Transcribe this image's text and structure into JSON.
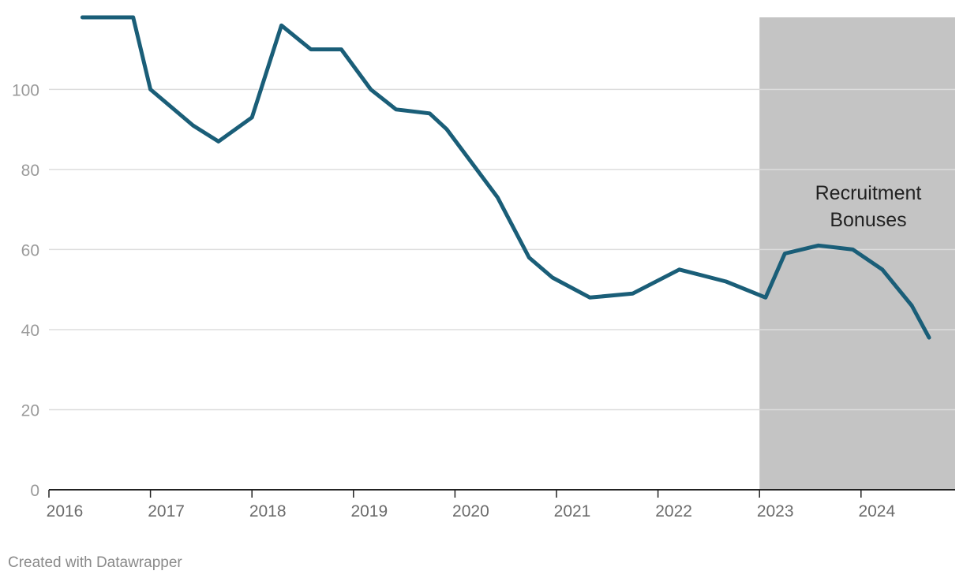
{
  "chart_data": {
    "type": "line",
    "title": "",
    "xlabel": "",
    "ylabel": "",
    "xlim": [
      2016,
      2024.8
    ],
    "ylim": [
      0,
      118
    ],
    "y_ticks": [
      0,
      20,
      40,
      60,
      80,
      100
    ],
    "x_ticks": [
      2016,
      2017,
      2018,
      2019,
      2020,
      2021,
      2022,
      2023,
      2024
    ],
    "grid": "horizontal",
    "colors": {
      "line": "#1a5e78",
      "shade": "#c4c4c4",
      "grid": "#dddddd",
      "tick_label": "#9a9a9a",
      "x_tick_label": "#6b6b6b",
      "axis": "#222222"
    },
    "series": [
      {
        "x": [
          2016.33,
          2016.83,
          2017.0,
          2017.42,
          2017.67,
          2018.0,
          2018.29,
          2018.58,
          2018.88,
          2019.17,
          2019.42,
          2019.75,
          2019.92,
          2020.42,
          2020.73,
          2020.96,
          2021.33,
          2021.75,
          2022.21,
          2022.67,
          2023.06,
          2023.25,
          2023.58,
          2023.92,
          2024.21,
          2024.5,
          2024.67
        ],
        "values": [
          118,
          118,
          100,
          91,
          87,
          93,
          116,
          110,
          110,
          100,
          95,
          94,
          90,
          73,
          58,
          53,
          48,
          49,
          55,
          52,
          48,
          59,
          61,
          60,
          55,
          46,
          38
        ]
      }
    ],
    "shaded_region": {
      "x_range": [
        2023,
        2024.8
      ],
      "label_lines": [
        "Recruitment",
        "Bonuses"
      ]
    }
  },
  "credit": "Created with Datawrapper"
}
